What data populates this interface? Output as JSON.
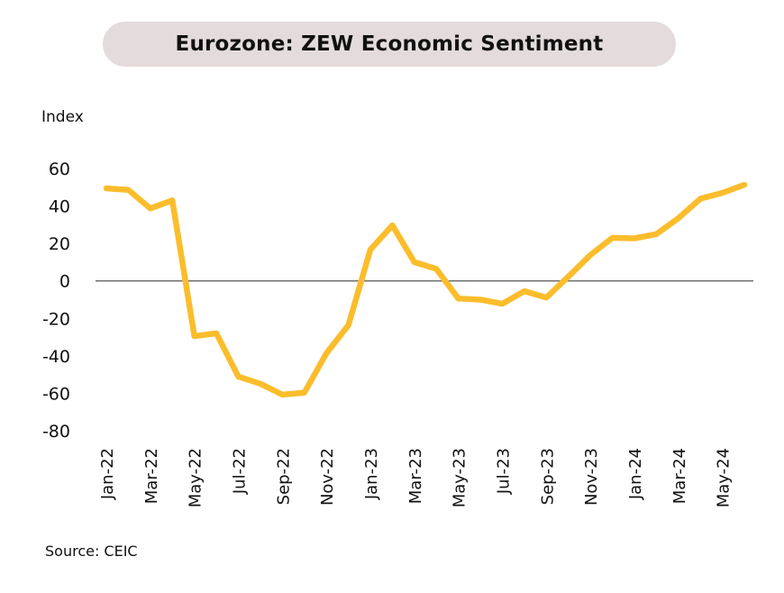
{
  "chart_data": {
    "type": "line",
    "title": "Eurozone: ZEW Economic Sentiment",
    "ylabel": "Index",
    "xlabel": "",
    "source": "Source: CEIC",
    "ylim": [
      -80,
      60
    ],
    "yticks": [
      "60",
      "40",
      "20",
      "0",
      "-20",
      "-40",
      "-60",
      "-80"
    ],
    "ytick_values": [
      60,
      40,
      20,
      0,
      -20,
      -40,
      -60,
      -80
    ],
    "grid": false,
    "zero_line": true,
    "line_color": "#fbbd2c",
    "zero_line_color": "#555555",
    "x": [
      "Jan-22",
      "Feb-22",
      "Mar-22",
      "Apr-22",
      "May-22",
      "Jun-22",
      "Jul-22",
      "Aug-22",
      "Sep-22",
      "Oct-22",
      "Nov-22",
      "Dec-22",
      "Jan-23",
      "Feb-23",
      "Mar-23",
      "Apr-23",
      "May-23",
      "Jun-23",
      "Jul-23",
      "Aug-23",
      "Sep-23",
      "Oct-23",
      "Nov-23",
      "Dec-23",
      "Jan-24",
      "Feb-24",
      "Mar-24",
      "Apr-24",
      "May-24",
      "Jun-24"
    ],
    "xtick_labels": [
      "Jan-22",
      "Mar-22",
      "May-22",
      "Jul-22",
      "Sep-22",
      "Nov-22",
      "Jan-23",
      "Mar-23",
      "May-23",
      "Jul-23",
      "Sep-23",
      "Nov-23",
      "Jan-24",
      "Mar-24",
      "May-24"
    ],
    "series": [
      {
        "values": [
          49.4,
          48.6,
          38.7,
          43.0,
          -29.5,
          -28.0,
          -51.1,
          -54.9,
          -60.7,
          -59.7,
          -38.7,
          -23.6,
          16.7,
          29.7,
          10.0,
          6.4,
          -9.4,
          -10.0,
          -12.2,
          -5.5,
          -8.9,
          2.3,
          13.8,
          23.0,
          22.7,
          25.0,
          33.5,
          43.9,
          47.0,
          51.3
        ]
      }
    ]
  }
}
